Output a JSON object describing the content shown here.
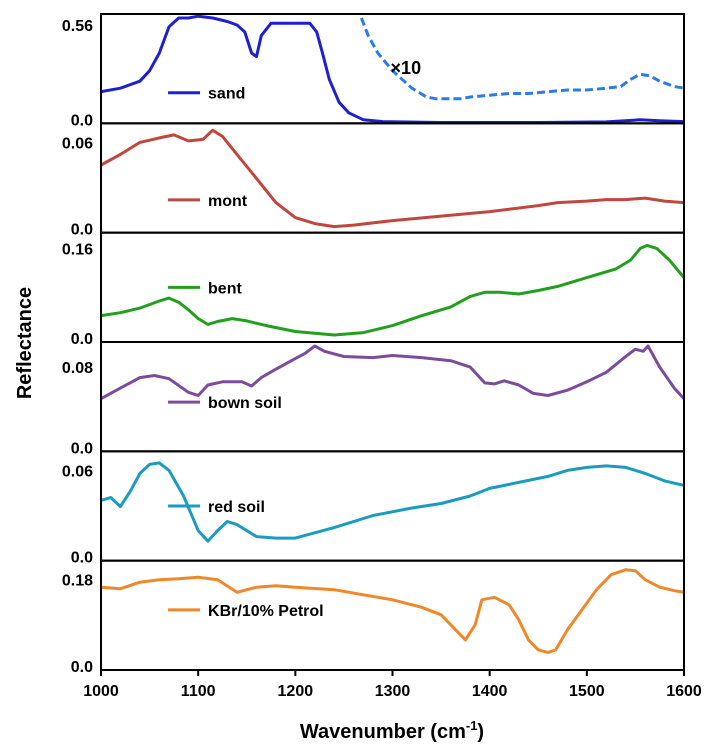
{
  "chart_data": {
    "type": "line",
    "xlabel": "Wavenumber (cm",
    "xlabel_sup": "-1",
    "xlabel_tail": ")",
    "ylabel": "Reflectance",
    "xlim": [
      1000,
      1600
    ],
    "x_ticks": [
      1000,
      1100,
      1200,
      1300,
      1400,
      1500,
      1600
    ],
    "x_tick_labels": [
      "1000",
      "1100",
      "1200",
      "1300",
      "1400",
      "1500",
      "1600"
    ],
    "panels": [
      {
        "name": "sand",
        "color": "#1f1fd0",
        "ylim": [
          0.0,
          0.6
        ],
        "y_top_label": "0.56",
        "y_top_value": 0.56,
        "y_bottom_label": "0.0",
        "y_bottom_value": 0.0,
        "points": [
          [
            1000,
            0.18
          ],
          [
            1020,
            0.2
          ],
          [
            1040,
            0.24
          ],
          [
            1050,
            0.3
          ],
          [
            1060,
            0.4
          ],
          [
            1070,
            0.55
          ],
          [
            1080,
            0.6
          ],
          [
            1090,
            0.6
          ],
          [
            1100,
            0.61
          ],
          [
            1115,
            0.6
          ],
          [
            1130,
            0.58
          ],
          [
            1140,
            0.56
          ],
          [
            1148,
            0.52
          ],
          [
            1155,
            0.4
          ],
          [
            1160,
            0.38
          ],
          [
            1165,
            0.5
          ],
          [
            1175,
            0.57
          ],
          [
            1190,
            0.57
          ],
          [
            1205,
            0.57
          ],
          [
            1215,
            0.57
          ],
          [
            1222,
            0.52
          ],
          [
            1228,
            0.4
          ],
          [
            1235,
            0.25
          ],
          [
            1245,
            0.12
          ],
          [
            1255,
            0.06
          ],
          [
            1270,
            0.02
          ],
          [
            1290,
            0.01
          ],
          [
            1350,
            0.005
          ],
          [
            1450,
            0.005
          ],
          [
            1520,
            0.008
          ],
          [
            1555,
            0.02
          ],
          [
            1575,
            0.015
          ],
          [
            1600,
            0.01
          ]
        ],
        "annotation_series": {
          "label": "×10",
          "color": "#2b7be8",
          "dashed": true,
          "points": [
            [
              1262,
              0.66
            ],
            [
              1268,
              0.6
            ],
            [
              1275,
              0.5
            ],
            [
              1285,
              0.4
            ],
            [
              1300,
              0.3
            ],
            [
              1320,
              0.2
            ],
            [
              1335,
              0.15
            ],
            [
              1345,
              0.14
            ],
            [
              1370,
              0.14
            ],
            [
              1380,
              0.15
            ],
            [
              1400,
              0.16
            ],
            [
              1420,
              0.17
            ],
            [
              1440,
              0.17
            ],
            [
              1460,
              0.18
            ],
            [
              1480,
              0.19
            ],
            [
              1500,
              0.19
            ],
            [
              1520,
              0.2
            ],
            [
              1535,
              0.21
            ],
            [
              1545,
              0.25
            ],
            [
              1555,
              0.28
            ],
            [
              1565,
              0.27
            ],
            [
              1575,
              0.24
            ],
            [
              1590,
              0.21
            ],
            [
              1600,
              0.2
            ]
          ]
        }
      },
      {
        "name": "mont",
        "color": "#c0473d",
        "ylim": [
          0.0,
          0.07
        ],
        "y_top_label": "0.06",
        "y_top_value": 0.06,
        "y_bottom_label": "0.0",
        "y_bottom_value": 0.0,
        "points": [
          [
            1000,
            0.045
          ],
          [
            1020,
            0.052
          ],
          [
            1040,
            0.06
          ],
          [
            1060,
            0.063
          ],
          [
            1075,
            0.065
          ],
          [
            1090,
            0.061
          ],
          [
            1105,
            0.062
          ],
          [
            1115,
            0.068
          ],
          [
            1125,
            0.064
          ],
          [
            1140,
            0.052
          ],
          [
            1160,
            0.036
          ],
          [
            1180,
            0.02
          ],
          [
            1200,
            0.01
          ],
          [
            1220,
            0.006
          ],
          [
            1240,
            0.004
          ],
          [
            1260,
            0.005
          ],
          [
            1300,
            0.008
          ],
          [
            1350,
            0.011
          ],
          [
            1400,
            0.014
          ],
          [
            1450,
            0.018
          ],
          [
            1470,
            0.02
          ],
          [
            1500,
            0.021
          ],
          [
            1520,
            0.022
          ],
          [
            1540,
            0.022
          ],
          [
            1560,
            0.023
          ],
          [
            1580,
            0.021
          ],
          [
            1600,
            0.02
          ]
        ]
      },
      {
        "name": "bent",
        "color": "#22a01c",
        "ylim": [
          0.0,
          0.18
        ],
        "y_top_label": "0.16",
        "y_top_value": 0.16,
        "y_bottom_label": "0.0",
        "y_bottom_value": 0.0,
        "points": [
          [
            1000,
            0.045
          ],
          [
            1020,
            0.05
          ],
          [
            1040,
            0.058
          ],
          [
            1060,
            0.07
          ],
          [
            1070,
            0.075
          ],
          [
            1080,
            0.068
          ],
          [
            1090,
            0.055
          ],
          [
            1100,
            0.04
          ],
          [
            1110,
            0.03
          ],
          [
            1120,
            0.035
          ],
          [
            1135,
            0.04
          ],
          [
            1150,
            0.036
          ],
          [
            1170,
            0.028
          ],
          [
            1200,
            0.018
          ],
          [
            1240,
            0.012
          ],
          [
            1270,
            0.016
          ],
          [
            1300,
            0.028
          ],
          [
            1330,
            0.045
          ],
          [
            1360,
            0.06
          ],
          [
            1380,
            0.078
          ],
          [
            1395,
            0.085
          ],
          [
            1410,
            0.085
          ],
          [
            1430,
            0.082
          ],
          [
            1450,
            0.088
          ],
          [
            1470,
            0.095
          ],
          [
            1490,
            0.105
          ],
          [
            1510,
            0.115
          ],
          [
            1530,
            0.125
          ],
          [
            1545,
            0.14
          ],
          [
            1555,
            0.16
          ],
          [
            1562,
            0.165
          ],
          [
            1572,
            0.16
          ],
          [
            1585,
            0.14
          ],
          [
            1595,
            0.12
          ],
          [
            1600,
            0.11
          ]
        ]
      },
      {
        "name": "bown soil",
        "color": "#7c4c9c",
        "ylim": [
          0.0,
          0.1
        ],
        "y_top_label": "0.08",
        "y_top_value": 0.08,
        "y_bottom_label": "0.0",
        "y_bottom_value": 0.0,
        "points": [
          [
            1000,
            0.05
          ],
          [
            1020,
            0.06
          ],
          [
            1040,
            0.07
          ],
          [
            1055,
            0.072
          ],
          [
            1070,
            0.069
          ],
          [
            1090,
            0.056
          ],
          [
            1100,
            0.053
          ],
          [
            1110,
            0.063
          ],
          [
            1125,
            0.066
          ],
          [
            1145,
            0.066
          ],
          [
            1155,
            0.062
          ],
          [
            1165,
            0.07
          ],
          [
            1180,
            0.078
          ],
          [
            1200,
            0.088
          ],
          [
            1210,
            0.093
          ],
          [
            1220,
            0.1
          ],
          [
            1230,
            0.095
          ],
          [
            1250,
            0.09
          ],
          [
            1280,
            0.089
          ],
          [
            1300,
            0.091
          ],
          [
            1330,
            0.089
          ],
          [
            1360,
            0.086
          ],
          [
            1380,
            0.08
          ],
          [
            1395,
            0.065
          ],
          [
            1405,
            0.064
          ],
          [
            1415,
            0.067
          ],
          [
            1430,
            0.063
          ],
          [
            1445,
            0.055
          ],
          [
            1460,
            0.053
          ],
          [
            1480,
            0.058
          ],
          [
            1500,
            0.066
          ],
          [
            1520,
            0.075
          ],
          [
            1540,
            0.09
          ],
          [
            1550,
            0.097
          ],
          [
            1558,
            0.095
          ],
          [
            1563,
            0.1
          ],
          [
            1575,
            0.08
          ],
          [
            1590,
            0.06
          ],
          [
            1600,
            0.05
          ]
        ]
      },
      {
        "name": "red soil",
        "color": "#1a9bbf",
        "ylim": [
          0.0,
          0.07
        ],
        "y_top_label": "0.06",
        "y_top_value": 0.06,
        "y_bottom_label": "0.0",
        "y_bottom_value": 0.0,
        "points": [
          [
            1000,
            0.04
          ],
          [
            1010,
            0.042
          ],
          [
            1020,
            0.036
          ],
          [
            1030,
            0.046
          ],
          [
            1040,
            0.058
          ],
          [
            1050,
            0.064
          ],
          [
            1060,
            0.065
          ],
          [
            1070,
            0.06
          ],
          [
            1085,
            0.043
          ],
          [
            1100,
            0.02
          ],
          [
            1110,
            0.013
          ],
          [
            1120,
            0.02
          ],
          [
            1130,
            0.026
          ],
          [
            1140,
            0.024
          ],
          [
            1160,
            0.016
          ],
          [
            1180,
            0.015
          ],
          [
            1200,
            0.015
          ],
          [
            1240,
            0.022
          ],
          [
            1280,
            0.03
          ],
          [
            1320,
            0.035
          ],
          [
            1350,
            0.038
          ],
          [
            1380,
            0.043
          ],
          [
            1400,
            0.048
          ],
          [
            1430,
            0.052
          ],
          [
            1460,
            0.056
          ],
          [
            1480,
            0.06
          ],
          [
            1500,
            0.062
          ],
          [
            1520,
            0.063
          ],
          [
            1540,
            0.062
          ],
          [
            1560,
            0.058
          ],
          [
            1580,
            0.053
          ],
          [
            1600,
            0.05
          ]
        ]
      },
      {
        "name": "KBr/10% Petrol",
        "color": "#f0882a",
        "ylim": [
          0.0,
          0.21
        ],
        "y_top_label": "0.18",
        "y_top_value": 0.18,
        "y_bottom_label": "0.0",
        "y_bottom_value": 0.0,
        "points": [
          [
            1000,
            0.165
          ],
          [
            1020,
            0.162
          ],
          [
            1040,
            0.175
          ],
          [
            1060,
            0.18
          ],
          [
            1080,
            0.182
          ],
          [
            1100,
            0.185
          ],
          [
            1120,
            0.18
          ],
          [
            1140,
            0.155
          ],
          [
            1160,
            0.165
          ],
          [
            1180,
            0.168
          ],
          [
            1200,
            0.165
          ],
          [
            1240,
            0.16
          ],
          [
            1270,
            0.15
          ],
          [
            1300,
            0.14
          ],
          [
            1330,
            0.125
          ],
          [
            1350,
            0.11
          ],
          [
            1365,
            0.08
          ],
          [
            1375,
            0.06
          ],
          [
            1385,
            0.09
          ],
          [
            1392,
            0.14
          ],
          [
            1405,
            0.145
          ],
          [
            1420,
            0.13
          ],
          [
            1430,
            0.1
          ],
          [
            1440,
            0.06
          ],
          [
            1450,
            0.04
          ],
          [
            1460,
            0.035
          ],
          [
            1468,
            0.04
          ],
          [
            1480,
            0.08
          ],
          [
            1495,
            0.12
          ],
          [
            1510,
            0.16
          ],
          [
            1525,
            0.19
          ],
          [
            1540,
            0.2
          ],
          [
            1550,
            0.198
          ],
          [
            1560,
            0.18
          ],
          [
            1575,
            0.165
          ],
          [
            1590,
            0.158
          ],
          [
            1600,
            0.155
          ]
        ]
      }
    ]
  }
}
